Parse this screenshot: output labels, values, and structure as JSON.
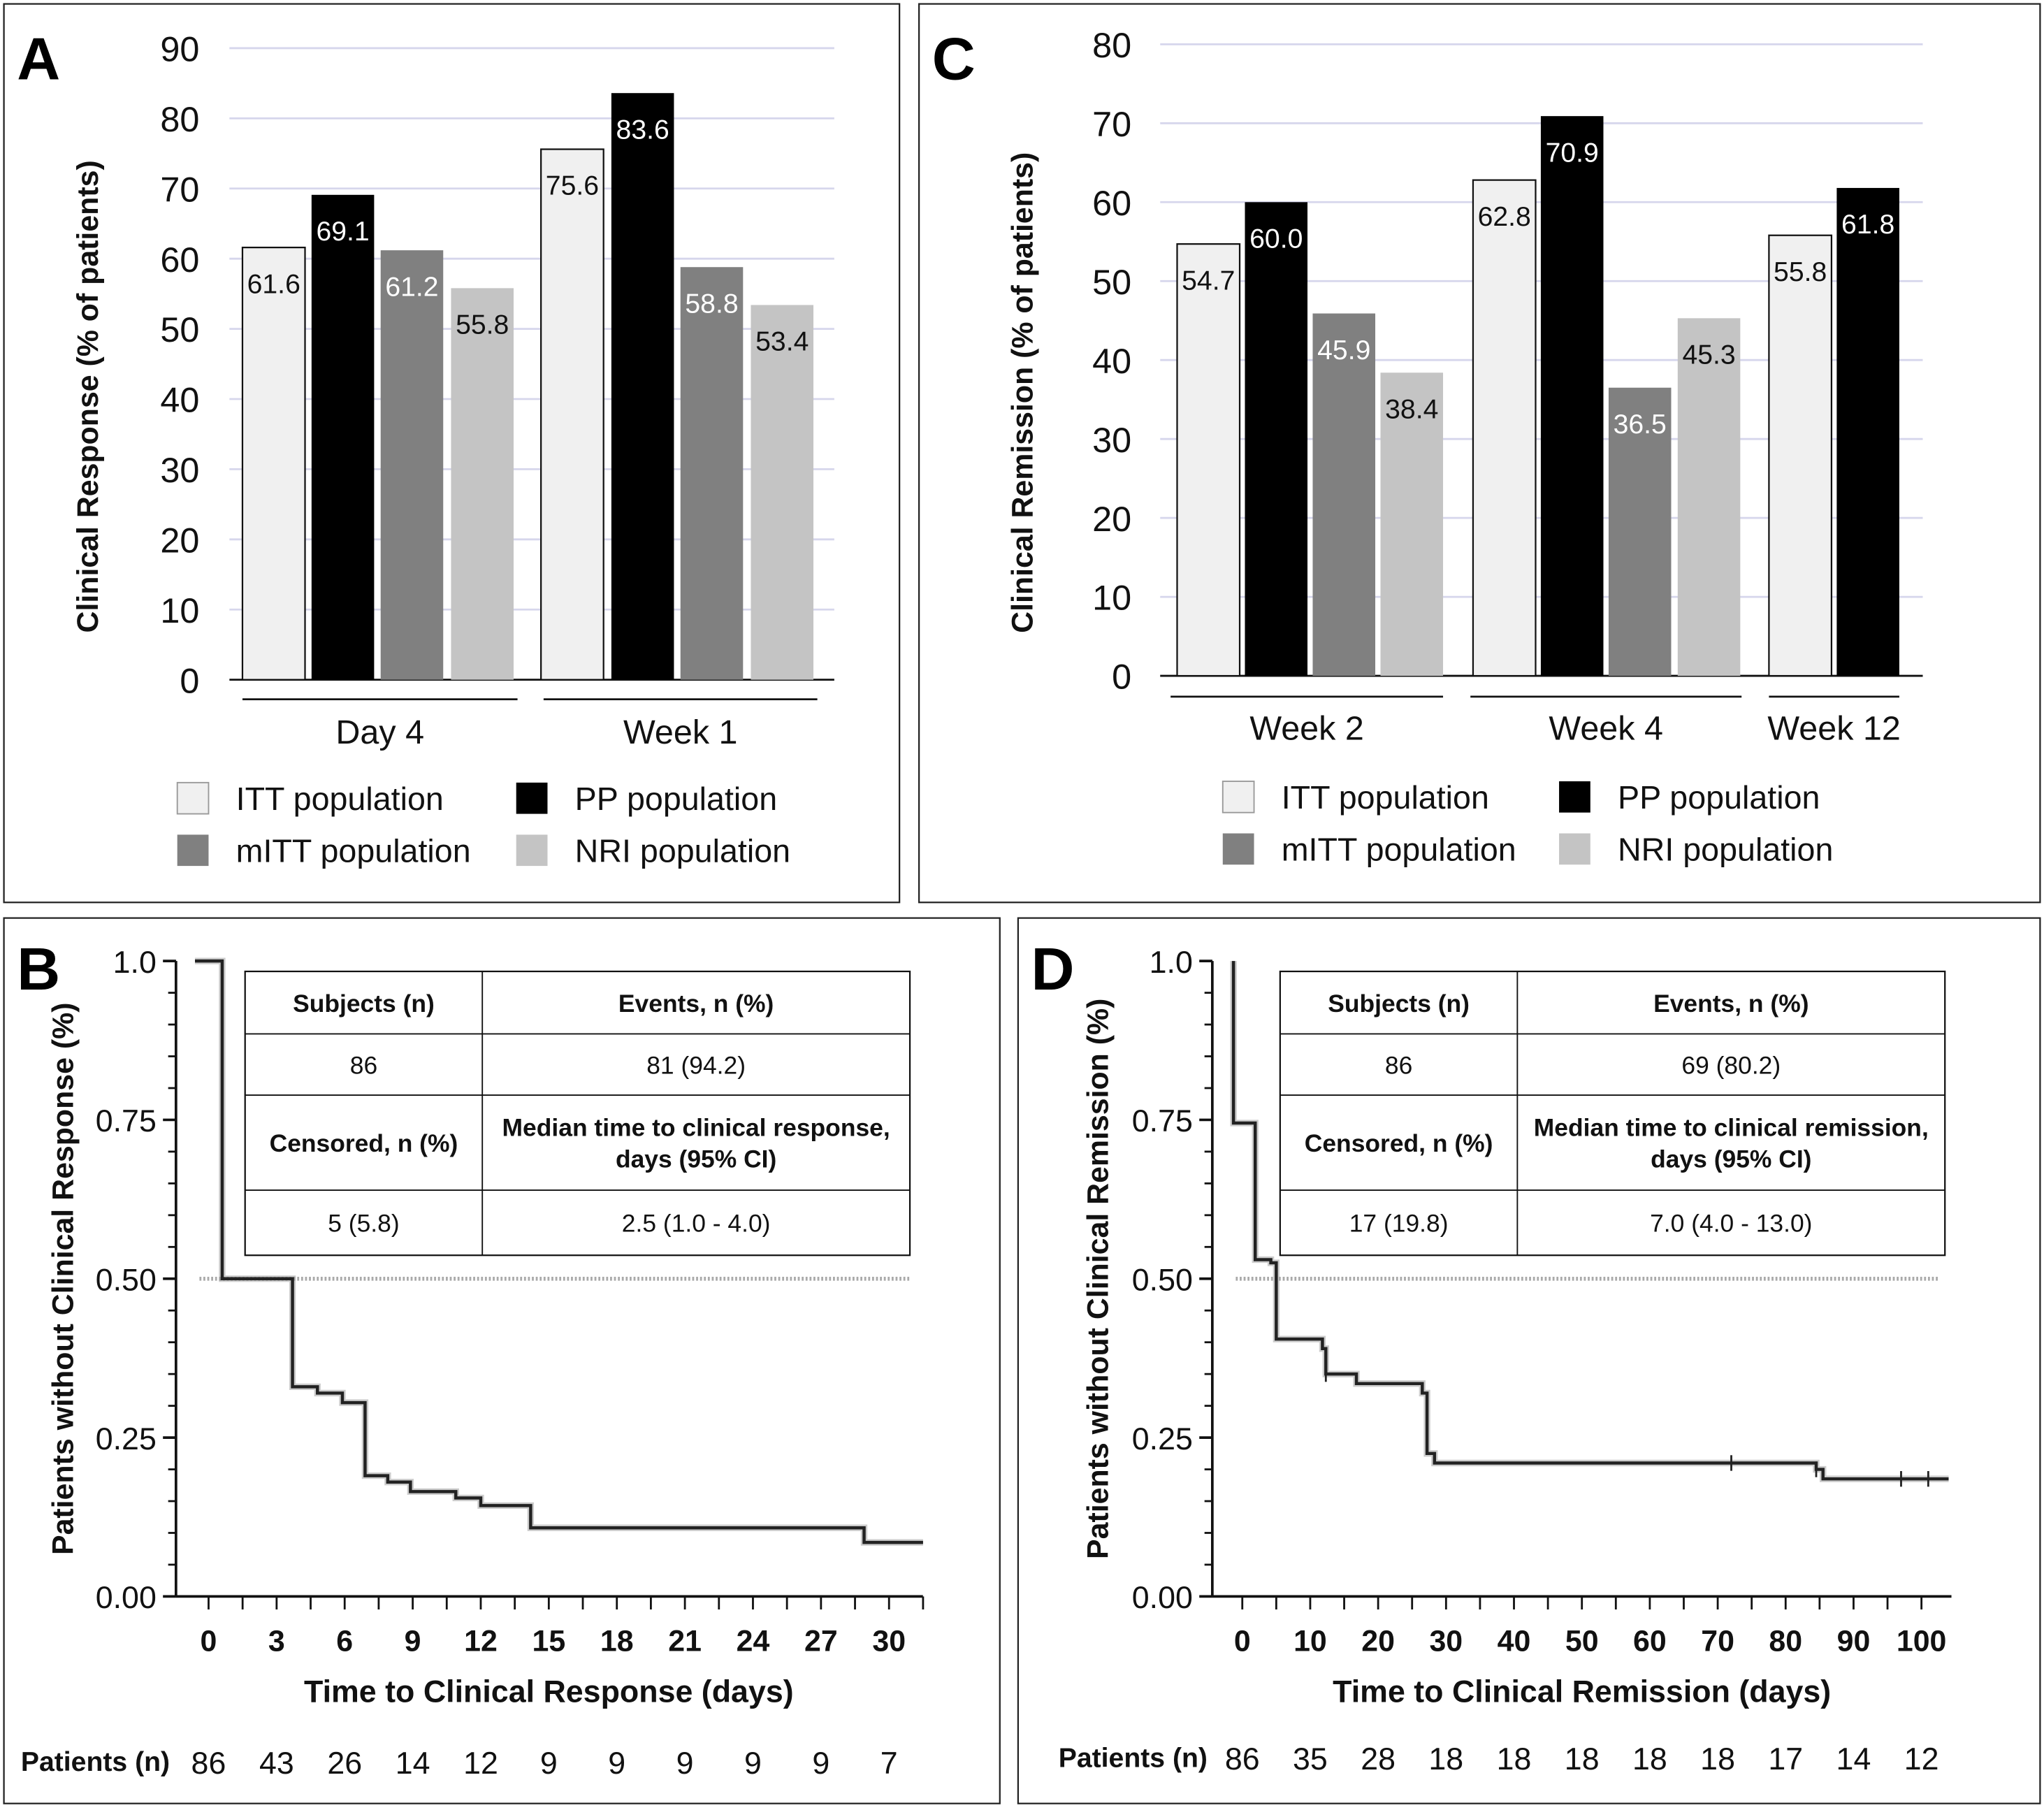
{
  "colors": {
    "itt": "#f0f0f0",
    "pp": "#000000",
    "mitt": "#808080",
    "nri": "#c4c4c4",
    "grid": "#d6d6ec",
    "km_line": "#222222",
    "median_line": "#aaaaaa"
  },
  "chart_data": [
    {
      "panel": "A",
      "type": "bar",
      "ylabel": "Clinical Response (% of patients)",
      "ylim": [
        0,
        90
      ],
      "yticks": [
        0,
        10,
        20,
        30,
        40,
        50,
        60,
        70,
        80,
        90
      ],
      "grid": true,
      "categories": [
        "Day 4",
        "Week 1"
      ],
      "series": [
        {
          "name": "ITT population",
          "key": "itt",
          "values": [
            61.6,
            75.6
          ],
          "labels": [
            "61.6",
            "75.6"
          ]
        },
        {
          "name": "PP population",
          "key": "pp",
          "values": [
            69.1,
            83.6
          ],
          "labels": [
            "69.1",
            "83.6"
          ]
        },
        {
          "name": "mITT population",
          "key": "mitt",
          "values": [
            61.2,
            58.8
          ],
          "labels": [
            "61.2",
            "58.8"
          ]
        },
        {
          "name": "NRI population",
          "key": "nri",
          "values": [
            55.8,
            53.4
          ],
          "labels": [
            "55.8",
            "53.4"
          ]
        }
      ],
      "legend": [
        "ITT population",
        "PP population",
        "mITT population",
        "NRI population"
      ],
      "legend_position": "bottom"
    },
    {
      "panel": "C",
      "type": "bar",
      "ylabel": "Clinical Remission (% of patients)",
      "ylim": [
        0,
        80
      ],
      "yticks": [
        0,
        10,
        20,
        30,
        40,
        50,
        60,
        70,
        80
      ],
      "grid": true,
      "categories": [
        "Week 2",
        "Week 4",
        "Week 12"
      ],
      "series": [
        {
          "name": "ITT population",
          "key": "itt",
          "values": [
            54.7,
            62.8,
            55.8
          ],
          "labels": [
            "54.7",
            "62.8",
            "55.8"
          ]
        },
        {
          "name": "PP population",
          "key": "pp",
          "values": [
            60.0,
            70.9,
            61.8
          ],
          "labels": [
            "60.0",
            "70.9",
            "61.8"
          ]
        },
        {
          "name": "mITT population",
          "key": "mitt",
          "values": [
            45.9,
            36.5,
            null
          ],
          "labels": [
            "45.9",
            "36.5",
            null
          ]
        },
        {
          "name": "NRI population",
          "key": "nri",
          "values": [
            38.4,
            45.3,
            null
          ],
          "labels": [
            "38.4",
            "45.3",
            null
          ]
        }
      ],
      "legend": [
        "ITT population",
        "PP population",
        "mITT population",
        "NRI population"
      ],
      "legend_position": "bottom"
    },
    {
      "panel": "B",
      "type": "line",
      "subtype": "kaplan-meier step",
      "xlabel": "Time to Clinical Response (days)",
      "ylabel": "Patients without Clinical Response (%)",
      "xlim": [
        -1.4,
        31.5
      ],
      "ylim": [
        0,
        1
      ],
      "xticks": [
        0,
        3,
        6,
        9,
        12,
        15,
        18,
        21,
        24,
        27,
        30
      ],
      "yticks": [
        "0.00",
        "0.25",
        "0.50",
        "0.75",
        "1.0"
      ],
      "median_line": 0.5,
      "steps": [
        [
          -0.6,
          1.0
        ],
        [
          0.6,
          0.5
        ],
        [
          3.7,
          0.33
        ],
        [
          4.8,
          0.32
        ],
        [
          5.9,
          0.305
        ],
        [
          6.9,
          0.19
        ],
        [
          7.9,
          0.18
        ],
        [
          8.9,
          0.165
        ],
        [
          10.9,
          0.155
        ],
        [
          12.0,
          0.143
        ],
        [
          14.2,
          0.108
        ],
        [
          28.9,
          0.085
        ],
        [
          31.5,
          0.085
        ]
      ],
      "censored": [],
      "risk_table": {
        "label": "Patients (n)",
        "values": [
          "86",
          "43",
          "26",
          "14",
          "12",
          "9",
          "9",
          "9",
          "9",
          "9",
          "7"
        ]
      },
      "summary_table": {
        "rows": [
          [
            "Subjects (n)",
            "Events, n (%)"
          ],
          [
            "86",
            "81 (94.2)"
          ],
          [
            "Censored, n (%)",
            "Median time to clinical response,|days (95% CI)"
          ],
          [
            "5 (5.8)",
            "2.5 (1.0 - 4.0)"
          ]
        ]
      }
    },
    {
      "panel": "D",
      "type": "line",
      "subtype": "kaplan-meier step",
      "xlabel": "Time to Clinical Remission (days)",
      "ylabel": "Patients without Clinical Remission (%)",
      "xlim": [
        -4.5,
        104
      ],
      "ylim": [
        0,
        1
      ],
      "xticks": [
        0,
        10,
        20,
        30,
        40,
        50,
        60,
        70,
        80,
        90,
        100
      ],
      "yticks": [
        "0.00",
        "0.25",
        "0.50",
        "0.75",
        "1.0"
      ],
      "median_line": 0.5,
      "steps": [
        [
          -1.3,
          1.0
        ],
        [
          -1.3,
          0.745
        ],
        [
          1.9,
          0.53
        ],
        [
          4.2,
          0.525
        ],
        [
          5.0,
          0.405
        ],
        [
          11.8,
          0.39
        ],
        [
          12.3,
          0.35
        ],
        [
          16.8,
          0.335
        ],
        [
          26.5,
          0.32
        ],
        [
          27.2,
          0.225
        ],
        [
          28.3,
          0.21
        ],
        [
          84.5,
          0.2
        ],
        [
          85.5,
          0.185
        ],
        [
          104,
          0.185
        ]
      ],
      "censored": [
        [
          12.3,
          0.35
        ],
        [
          72,
          0.21
        ],
        [
          84.5,
          0.2
        ],
        [
          97,
          0.185
        ],
        [
          101,
          0.185
        ]
      ],
      "risk_table": {
        "label": "Patients (n)",
        "values": [
          "86",
          "35",
          "28",
          "18",
          "18",
          "18",
          "18",
          "18",
          "17",
          "14",
          "12"
        ]
      },
      "summary_table": {
        "rows": [
          [
            "Subjects (n)",
            "Events, n (%)"
          ],
          [
            "86",
            "69 (80.2)"
          ],
          [
            "Censored, n (%)",
            "Median time to clinical remission,|days (95% CI)"
          ],
          [
            "17 (19.8)",
            "7.0 (4.0 - 13.0)"
          ]
        ]
      }
    }
  ]
}
